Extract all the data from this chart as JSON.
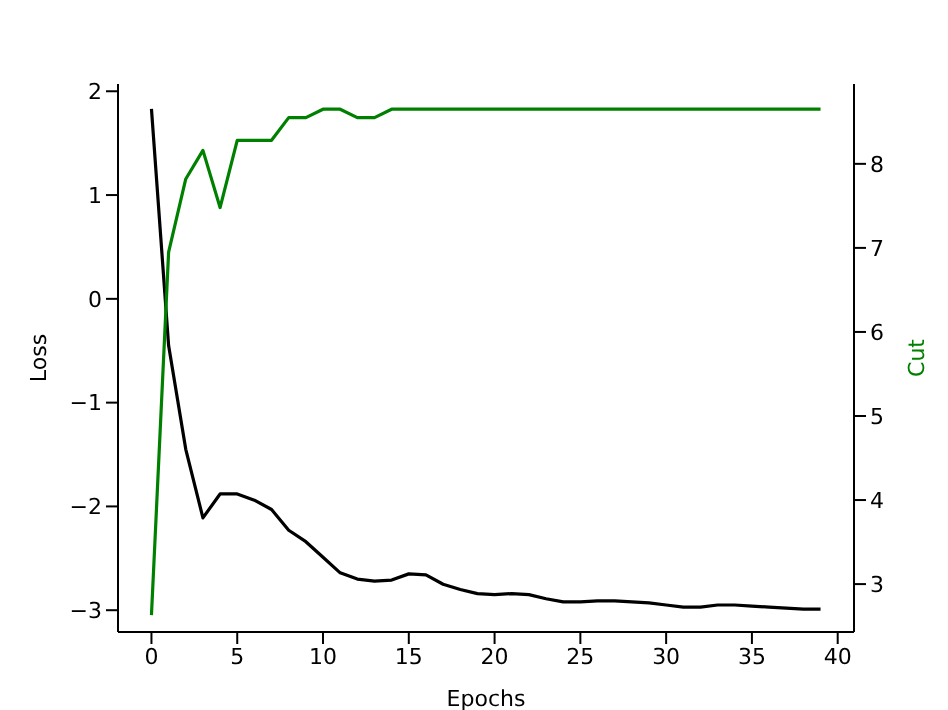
{
  "chart_data": {
    "type": "line",
    "xlabel": "Epochs",
    "ylabel": "Loss",
    "y2label": "Cut",
    "x": [
      0,
      1,
      2,
      3,
      4,
      5,
      6,
      7,
      8,
      9,
      10,
      11,
      12,
      13,
      14,
      15,
      16,
      17,
      18,
      19,
      20,
      21,
      22,
      23,
      24,
      25,
      26,
      27,
      28,
      29,
      30,
      31,
      32,
      33,
      34,
      35,
      36,
      37,
      38,
      39
    ],
    "series": [
      {
        "color": "#000000",
        "values": [
          1.83,
          -0.45,
          -1.45,
          -2.11,
          -1.88,
          -1.88,
          -1.94,
          -2.03,
          -2.23,
          -2.34,
          -2.49,
          -2.64,
          -2.7,
          -2.72,
          -2.71,
          -2.65,
          -2.66,
          -2.75,
          -2.8,
          -2.84,
          -2.85,
          -2.84,
          -2.85,
          -2.89,
          -2.92,
          -2.92,
          -2.91,
          -2.91,
          -2.92,
          -2.93,
          -2.95,
          -2.97,
          -2.97,
          -2.95,
          -2.95,
          -2.96,
          -2.97,
          -2.98,
          -2.99,
          -2.99
        ]
      },
      {
        "color": "#008000",
        "axis": "y2",
        "values": [
          2.63,
          6.95,
          7.82,
          8.16,
          7.48,
          8.28,
          8.28,
          8.28,
          8.55,
          8.55,
          8.65,
          8.65,
          8.55,
          8.55,
          8.65,
          8.65,
          8.65,
          8.65,
          8.65,
          8.65,
          8.65,
          8.65,
          8.65,
          8.65,
          8.65,
          8.65,
          8.65,
          8.65,
          8.65,
          8.65,
          8.65,
          8.65,
          8.65,
          8.65,
          8.65,
          8.65,
          8.65,
          8.65,
          8.65,
          8.65
        ]
      }
    ],
    "xlim": [
      -1.95,
      40.95
    ],
    "xticks": [
      0,
      5,
      10,
      15,
      20,
      25,
      30,
      35,
      40
    ],
    "ylim": [
      -3.21,
      2.07
    ],
    "yticks": [
      -3,
      -2,
      -1,
      0,
      1,
      2
    ],
    "y2lim": [
      2.43,
      8.95
    ],
    "y2ticks": [
      3,
      4,
      5,
      6,
      7,
      8
    ],
    "grid": false,
    "legend": false,
    "marker": "none",
    "line_style": "solid"
  }
}
